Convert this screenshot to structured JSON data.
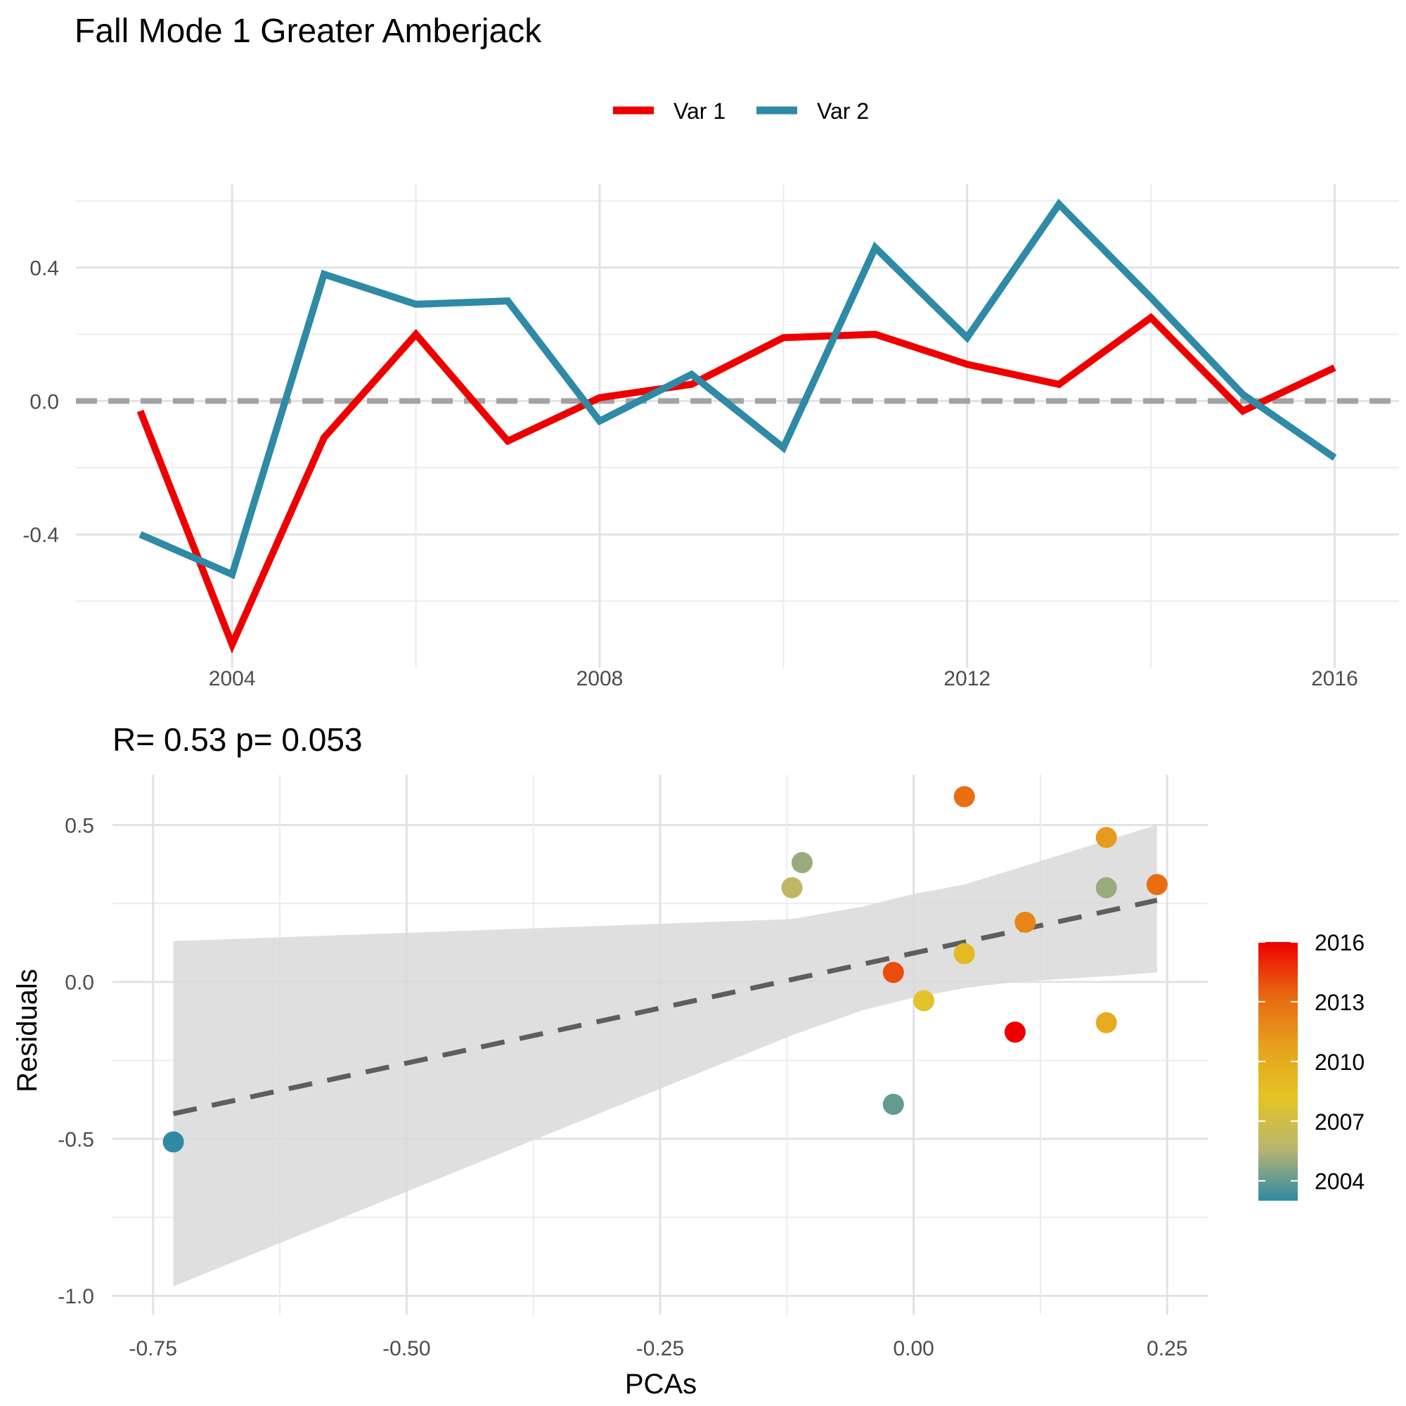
{
  "title": "Fall Mode 1 Greater Amberjack",
  "chart_data": [
    {
      "type": "line",
      "legend_position": "top",
      "grid": true,
      "x": [
        2003,
        2004,
        2005,
        2006,
        2007,
        2008,
        2009,
        2010,
        2011,
        2012,
        2013,
        2014,
        2015,
        2016
      ],
      "x_ticks": [
        "2004",
        "2008",
        "2012",
        "2016"
      ],
      "y_ticks": [
        "-0.4",
        "0.0",
        "0.4"
      ],
      "xlim": [
        2002.3,
        2016.7
      ],
      "ylim": [
        -0.8,
        0.65
      ],
      "reference_line": 0,
      "series": [
        {
          "name": "Var 1",
          "color": "#EE0000",
          "values": [
            -0.03,
            -0.73,
            -0.11,
            0.2,
            -0.12,
            0.01,
            0.05,
            0.19,
            0.2,
            0.11,
            0.05,
            0.25,
            -0.03,
            0.1
          ]
        },
        {
          "name": "Var 2",
          "color": "#2E8AA5",
          "values": [
            -0.4,
            -0.52,
            0.38,
            0.29,
            0.3,
            -0.06,
            0.08,
            -0.14,
            0.46,
            0.19,
            0.59,
            0.31,
            0.02,
            -0.17
          ]
        }
      ]
    },
    {
      "type": "scatter",
      "subtitle": "R= 0.53  p= 0.053",
      "xlabel": "PCAs",
      "ylabel": "Residuals",
      "grid": true,
      "xlim": [
        -0.79,
        0.29
      ],
      "ylim": [
        -1.06,
        0.66
      ],
      "x_ticks": [
        "-0.75",
        "-0.50",
        "-0.25",
        "0.00",
        "0.25"
      ],
      "y_ticks": [
        "-1.0",
        "-0.5",
        "0.0",
        "0.5"
      ],
      "points": [
        {
          "x": -0.73,
          "y": -0.51,
          "year": 2003
        },
        {
          "x": -0.02,
          "y": -0.39,
          "year": 2004
        },
        {
          "x": -0.11,
          "y": 0.38,
          "year": 2005
        },
        {
          "x": 0.24,
          "y": 0.31,
          "year": 2013
        },
        {
          "x": -0.12,
          "y": 0.3,
          "year": 2006
        },
        {
          "x": 0.19,
          "y": 0.3,
          "year": 2005
        },
        {
          "x": 0.05,
          "y": 0.59,
          "year": 2013
        },
        {
          "x": 0.19,
          "y": 0.46,
          "year": 2011
        },
        {
          "x": 0.11,
          "y": 0.19,
          "year": 2012
        },
        {
          "x": 0.05,
          "y": 0.09,
          "year": 2009
        },
        {
          "x": -0.02,
          "y": 0.03,
          "year": 2014
        },
        {
          "x": 0.01,
          "y": -0.06,
          "year": 2008
        },
        {
          "x": 0.1,
          "y": -0.16,
          "year": 2016
        },
        {
          "x": 0.19,
          "y": -0.13,
          "year": 2010
        }
      ],
      "fit_line": {
        "x": [
          -0.73,
          0.24
        ],
        "y": [
          -0.42,
          0.26
        ]
      },
      "confidence_band": {
        "x": [
          -0.73,
          -0.12,
          -0.05,
          0.0,
          0.05,
          0.1,
          0.15,
          0.2,
          0.24
        ],
        "lower": [
          -0.97,
          -0.17,
          -0.09,
          -0.05,
          -0.02,
          0.0,
          0.01,
          0.02,
          0.03
        ],
        "upper": [
          0.13,
          0.2,
          0.24,
          0.28,
          0.31,
          0.36,
          0.41,
          0.46,
          0.5
        ]
      },
      "color_legend": {
        "labels": [
          "2016",
          "2013",
          "2010",
          "2007",
          "2004"
        ],
        "values": [
          2016,
          2013,
          2010,
          2007,
          2004
        ],
        "range": [
          2003,
          2016
        ],
        "gradient": [
          "#2E8AA5",
          "#B9B570",
          "#E5C423",
          "#E6A01E",
          "#E86510",
          "#EE0000"
        ]
      }
    }
  ]
}
